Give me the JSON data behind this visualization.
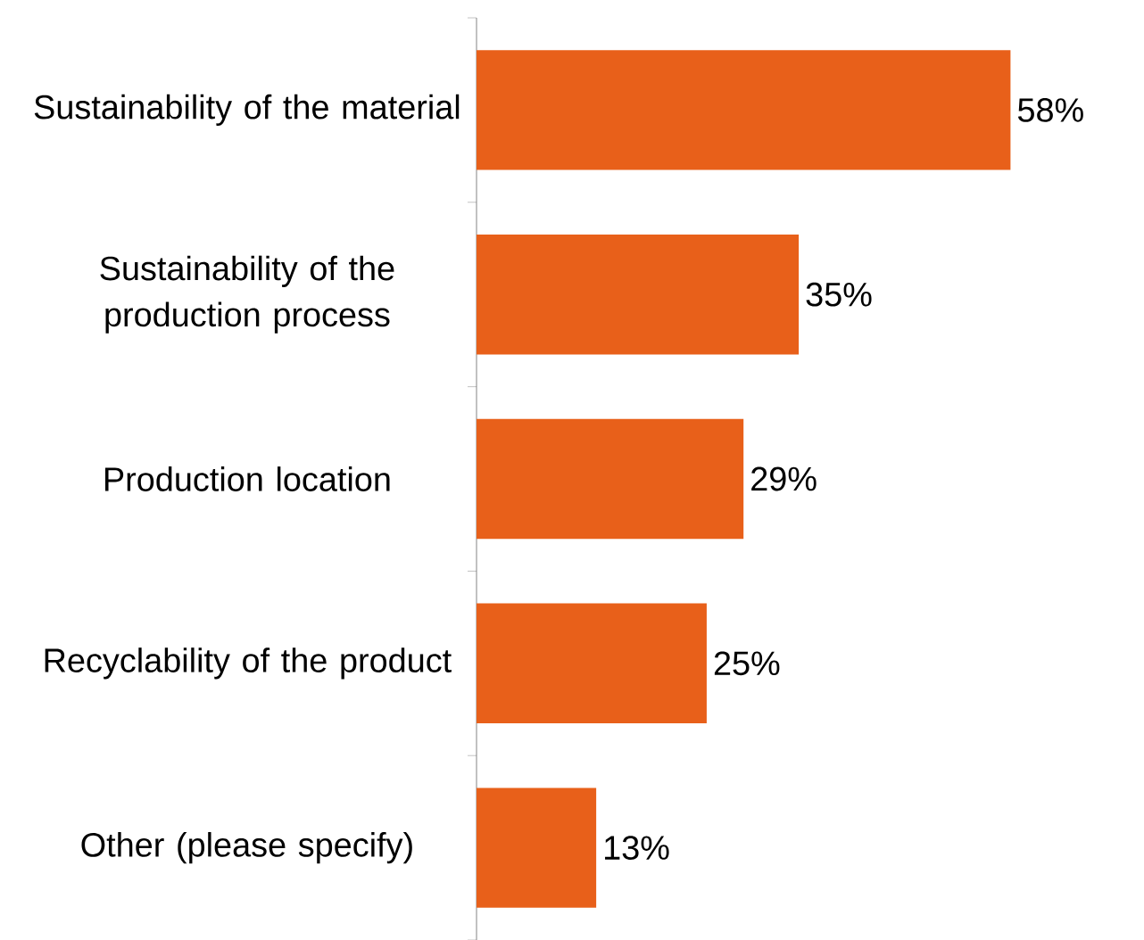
{
  "chart_data": {
    "type": "bar",
    "orientation": "horizontal",
    "categories": [
      "Sustainability of the material",
      "Sustainability of the production process",
      "Production location",
      "Recyclability of the product",
      "Other (please specify)"
    ],
    "values": [
      58,
      35,
      29,
      25,
      13
    ],
    "value_labels": [
      "58%",
      "35%",
      "29%",
      "25%",
      "13%"
    ],
    "color": "#e8601a"
  }
}
